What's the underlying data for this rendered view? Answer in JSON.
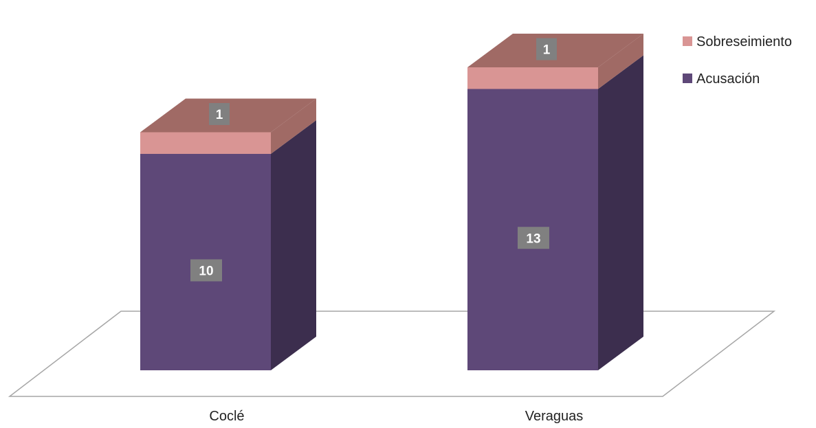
{
  "chart_data": {
    "type": "bar",
    "stacked": true,
    "three_d": true,
    "categories": [
      "Coclé",
      "Veraguas"
    ],
    "series": [
      {
        "name": "Acusación",
        "values": [
          10,
          13
        ],
        "color": "#5E4878",
        "side_color": "#3C2E4E",
        "top_color": "#6B5687"
      },
      {
        "name": "Sobreseimiento",
        "values": [
          1,
          1
        ],
        "color": "#D99594",
        "side_color": "#A06A65",
        "top_color": "#A6716C"
      }
    ],
    "title": "",
    "xlabel": "",
    "ylabel": "",
    "legend_position": "top-right",
    "legend_order": [
      "Sobreseimiento",
      "Acusación"
    ],
    "label_box_color": "#808080",
    "floor_color": "#A6A6A6"
  }
}
